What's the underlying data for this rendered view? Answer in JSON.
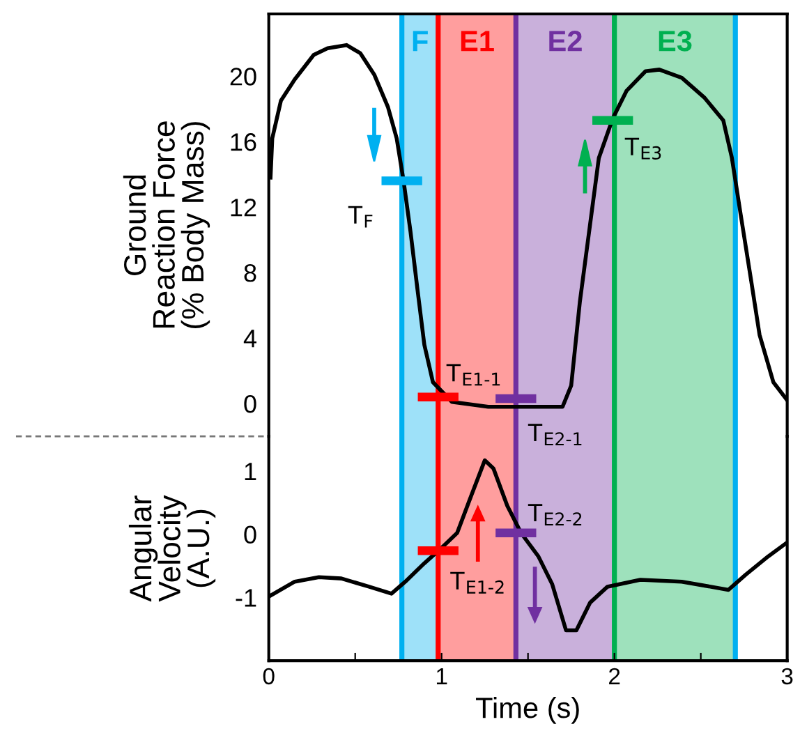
{
  "chart_data": [
    {
      "type": "line",
      "ylabel": "Ground\nReaction Force\n(% Body Mass)",
      "xlim": [
        0,
        3
      ],
      "ylim": [
        -2,
        23.8
      ],
      "yticks": [
        0,
        4,
        8,
        12,
        16,
        20
      ],
      "tick_labels": "y",
      "grid": false,
      "legend": false,
      "series": [
        {
          "color": "#000000",
          "x": [
            0.01,
            0.02,
            0.07,
            0.15,
            0.26,
            0.34,
            0.45,
            0.53,
            0.61,
            0.69,
            0.74,
            0.78,
            0.82,
            0.86,
            0.9,
            0.95,
            1.06,
            1.27,
            1.43,
            1.7,
            1.75,
            1.8,
            1.86,
            1.91,
            1.99,
            2.07,
            2.18,
            2.26,
            2.39,
            2.52,
            2.63,
            2.68,
            2.73,
            2.79,
            2.84,
            2.92,
            3.0
          ],
          "values": [
            13.8,
            16.2,
            18.5,
            19.8,
            21.3,
            21.7,
            21.9,
            21.4,
            20.1,
            18.1,
            16.2,
            13.6,
            10.5,
            7.0,
            3.6,
            1.3,
            0.1,
            -0.2,
            -0.2,
            -0.2,
            1.1,
            6.2,
            11.0,
            15.0,
            17.4,
            19.1,
            20.3,
            20.4,
            19.9,
            18.7,
            17.3,
            15.0,
            11.6,
            7.6,
            4.2,
            1.3,
            0.2
          ]
        }
      ],
      "annotations": [
        {
          "text": "T$_{F}$",
          "x": 0.77,
          "y": 13.6
        },
        {
          "text": "T$_{E3}$",
          "x": 1.99,
          "y": 17.3
        },
        {
          "text": "T$_{E1-1}$",
          "x": 0.98,
          "y": 0.4
        },
        {
          "text": "T$_{E2-1}$",
          "x": 1.43,
          "y": 0.3
        }
      ],
      "bands": [
        {
          "axis": "x",
          "from": 0.77,
          "to": 0.98,
          "label": "F",
          "color": "#00b0f0"
        },
        {
          "axis": "x",
          "from": 0.98,
          "to": 1.43,
          "label": "E1",
          "color": "#ff0000"
        },
        {
          "axis": "x",
          "from": 1.43,
          "to": 2.0,
          "label": "E2",
          "color": "#7030a0"
        },
        {
          "axis": "x",
          "from": 2.0,
          "to": 2.7,
          "label": "E3",
          "color": "#00b050"
        }
      ],
      "ref_lines": [
        {
          "axis": "x",
          "value": 0.77,
          "color": "#00b0f0"
        },
        {
          "axis": "x",
          "value": 0.98,
          "color": "#ff0000"
        },
        {
          "axis": "x",
          "value": 1.43,
          "color": "#7030a0"
        },
        {
          "axis": "x",
          "value": 2.0,
          "color": "#00b050"
        },
        {
          "axis": "x",
          "value": 2.7,
          "color": "#00b0f0"
        }
      ]
    },
    {
      "type": "line",
      "ylabel": "Angular\nVelocity\n(A.U.)",
      "xlabel": "Time (s)",
      "xlim": [
        0,
        3
      ],
      "ylim": [
        -2,
        1.55
      ],
      "yticks": [
        -1,
        0,
        1
      ],
      "xticks": [
        0,
        {
          "value": 0.5,
          "label": null
        },
        1,
        {
          "value": 1.5,
          "label": null
        },
        2,
        {
          "value": 2.5,
          "label": null
        },
        3
      ],
      "grid": false,
      "legend": false,
      "series": [
        {
          "color": "#000000",
          "x": [
            0.01,
            0.15,
            0.29,
            0.42,
            0.58,
            0.71,
            0.79,
            0.9,
            0.99,
            1.09,
            1.17,
            1.25,
            1.3,
            1.38,
            1.46,
            1.56,
            1.64,
            1.72,
            1.78,
            1.86,
            1.96,
            2.15,
            2.39,
            2.66,
            2.76,
            2.89,
            3.0
          ],
          "values": [
            -0.97,
            -0.75,
            -0.68,
            -0.7,
            -0.83,
            -0.94,
            -0.75,
            -0.46,
            -0.24,
            0.02,
            0.6,
            1.17,
            1.04,
            0.45,
            0.02,
            -0.35,
            -0.79,
            -1.52,
            -1.52,
            -1.08,
            -0.83,
            -0.72,
            -0.75,
            -0.88,
            -0.64,
            -0.35,
            -0.13
          ]
        }
      ],
      "annotations": [
        {
          "text": "T$_{E1-2}$",
          "x": 0.98,
          "y": -0.26
        },
        {
          "text": "T$_{E2-2}$",
          "x": 1.43,
          "y": 0.02
        }
      ],
      "bands": [
        {
          "axis": "x",
          "from": 0.77,
          "to": 0.98,
          "color": "#00b0f0"
        },
        {
          "axis": "x",
          "from": 0.98,
          "to": 1.43,
          "color": "#ff0000"
        },
        {
          "axis": "x",
          "from": 1.43,
          "to": 2.0,
          "color": "#7030a0"
        },
        {
          "axis": "x",
          "from": 2.0,
          "to": 2.7,
          "color": "#00b050"
        }
      ],
      "ref_lines": [
        {
          "axis": "x",
          "value": 0.77,
          "color": "#00b0f0"
        },
        {
          "axis": "x",
          "value": 0.98,
          "color": "#ff0000"
        },
        {
          "axis": "x",
          "value": 1.43,
          "color": "#7030a0"
        },
        {
          "axis": "x",
          "value": 2.0,
          "color": "#00b050"
        },
        {
          "axis": "x",
          "value": 2.7,
          "color": "#00b0f0"
        }
      ]
    }
  ]
}
